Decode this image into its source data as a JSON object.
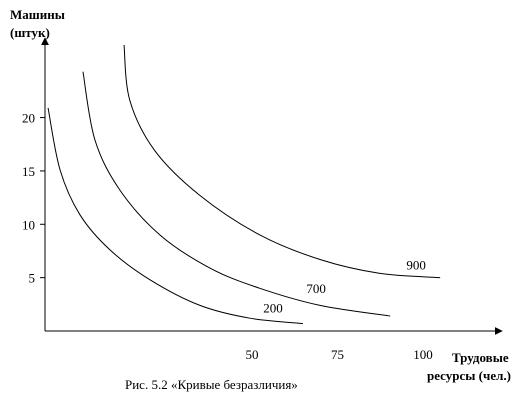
{
  "chart_data": {
    "type": "line",
    "ylabel": [
      "Машины",
      "(штук)"
    ],
    "xlabel": [
      "Трудовые",
      "ресурсы (чел.)"
    ],
    "caption": "Рис.  5.2    «Кривые безразличия»",
    "xlim": [
      -10.5,
      122.5
    ],
    "ylim": [
      0,
      26.8
    ],
    "xticks": [
      50,
      75,
      100
    ],
    "yticks": [
      5,
      10,
      15,
      20
    ],
    "color": "#000000",
    "series": [
      {
        "name": "200",
        "x": [
          -9.6,
          -6.1,
          -0.3,
          8.5,
          20.2,
          34.8,
          49.4,
          64.9
        ],
        "values": [
          20.9,
          15.1,
          10.9,
          7.6,
          4.8,
          2.4,
          1.2,
          0.7
        ]
      },
      {
        "name": "700",
        "x": [
          0.6,
          4.1,
          11.4,
          23.1,
          37.7,
          52.3,
          69.9,
          90.4
        ],
        "values": [
          24.3,
          17.9,
          13.2,
          9.0,
          5.9,
          4.0,
          2.4,
          1.4
        ]
      },
      {
        "name": "900",
        "x": [
          12.6,
          14.3,
          21.6,
          34.8,
          52.3,
          69.9,
          87.4,
          105.0
        ],
        "values": [
          26.8,
          21.6,
          16.9,
          12.7,
          9.0,
          6.7,
          5.4,
          5.0
        ]
      }
    ]
  }
}
